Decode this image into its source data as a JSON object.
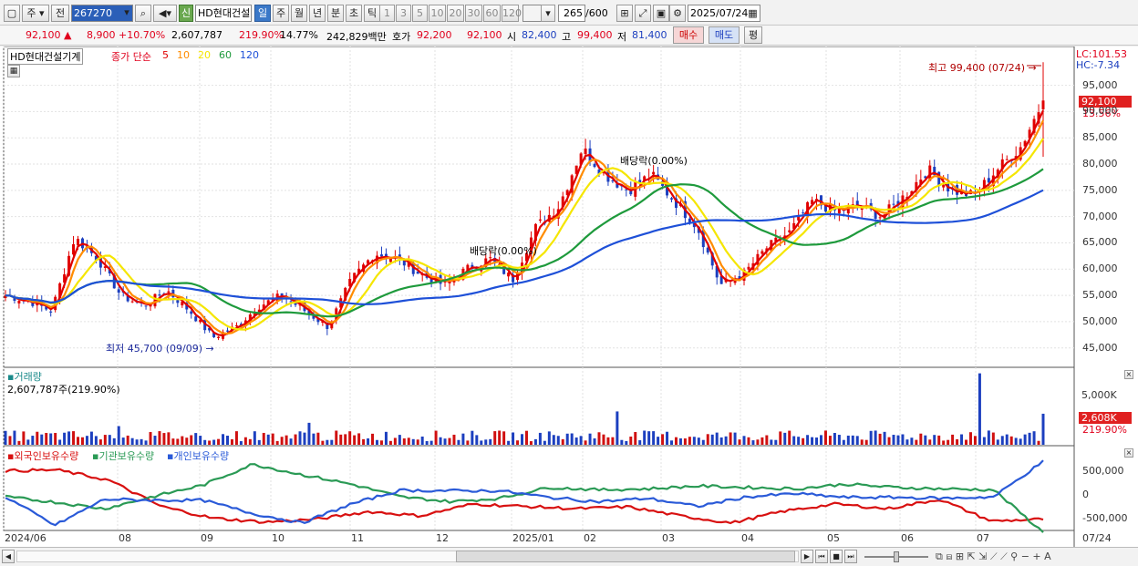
{
  "toolbar": {
    "period_type": "주",
    "prev_label": "전",
    "code": "267270",
    "new_badge": "신",
    "stock_name": "HD현대건설",
    "tf_tabs": [
      "일",
      "주",
      "월",
      "년",
      "분",
      "초",
      "틱"
    ],
    "active_tf": "일",
    "minute_opts": [
      "1",
      "3",
      "5",
      "10",
      "20",
      "30",
      "60",
      "120"
    ],
    "count_display": "265",
    "count_total": "/600",
    "date": "2025/07/24"
  },
  "quote": {
    "price": "92,100",
    "change": "8,900",
    "change_pct": "+10.70%",
    "volume": "2,607,787",
    "volume_ratio": "219.90%",
    "turnover": "14.77%",
    "amount": "242,829백만",
    "hoga_label": "호가",
    "ask": "92,200",
    "bid": "92,100",
    "open_label": "시",
    "open": "82,400",
    "high_label": "고",
    "high": "99,400",
    "low_label": "저",
    "low": "81,400",
    "buy_btn": "매수",
    "sell_btn": "매도",
    "eval_btn": "평"
  },
  "price_panel": {
    "title": "HD현대건설기계",
    "ma_label": "종가 단순",
    "ma_periods": [
      "5",
      "10",
      "20",
      "60",
      "120"
    ],
    "ma_colors": [
      "#e00000",
      "#ff8c00",
      "#f5e600",
      "#1e9a3c",
      "#1e50d8"
    ],
    "lc": "LC:101.53",
    "hc": "HC:-7.34",
    "high_annotation": "최고 99,400 (07/24)",
    "low_annotation": "최저 45,700 (09/09)",
    "dividend1": "배당락(0.00%)",
    "dividend2": "배당락(0.00%)",
    "current_price_tag": "92,100",
    "current_pct_tag": "13.56%",
    "y_ticks": [
      "95,000",
      "90,000",
      "85,000",
      "80,000",
      "75,000",
      "70,000",
      "65,000",
      "60,000",
      "55,000",
      "50,000",
      "45,000"
    ]
  },
  "volume_panel": {
    "title": "거래량",
    "value": "2,607,787주(219.90%)",
    "tag_value": "2,608K",
    "tag_pct": "219.90%",
    "y_ticks": [
      "5,000K"
    ]
  },
  "holding_panel": {
    "series": [
      "외국인보유수량",
      "기관보유수량",
      "개인보유수량"
    ],
    "series_colors": [
      "#d81010",
      "#2a9a55",
      "#2a5ad8"
    ],
    "y_ticks": [
      "500,000",
      "0",
      "-500,000"
    ]
  },
  "x_axis": [
    "2024/06",
    "08",
    "09",
    "10",
    "11",
    "12",
    "2025/01",
    "02",
    "03",
    "04",
    "05",
    "06",
    "07",
    "07/24"
  ],
  "chart_data": [
    {
      "type": "candlestick",
      "title": "HD현대건설기계",
      "ylim": [
        42000,
        101000
      ],
      "x_labels": [
        "2024/06",
        "08",
        "09",
        "10",
        "11",
        "12",
        "2025/01",
        "02",
        "03",
        "04",
        "05",
        "06",
        "07"
      ],
      "close_samples": [
        55000,
        54000,
        52000,
        66000,
        62000,
        55000,
        53000,
        56000,
        52000,
        47000,
        49000,
        53000,
        55000,
        52000,
        49000,
        58000,
        63000,
        62000,
        59000,
        57000,
        60000,
        62000,
        58000,
        68000,
        72000,
        83000,
        78000,
        75000,
        78000,
        73000,
        68000,
        57000,
        59000,
        64000,
        67000,
        73000,
        71000,
        72000,
        70000,
        74000,
        79000,
        75000,
        74000,
        79000,
        83100,
        92100
      ],
      "high": 99400,
      "low": 45700,
      "last": 92100
    },
    {
      "type": "bar",
      "title": "거래량",
      "last": 2607787,
      "y_ticks": [
        "5,000K"
      ]
    },
    {
      "type": "line",
      "series": [
        {
          "name": "외국인보유수량"
        },
        {
          "name": "기관보유수량"
        },
        {
          "name": "개인보유수량"
        }
      ],
      "y_ticks": [
        "500,000",
        "0",
        "-500,000"
      ]
    }
  ]
}
